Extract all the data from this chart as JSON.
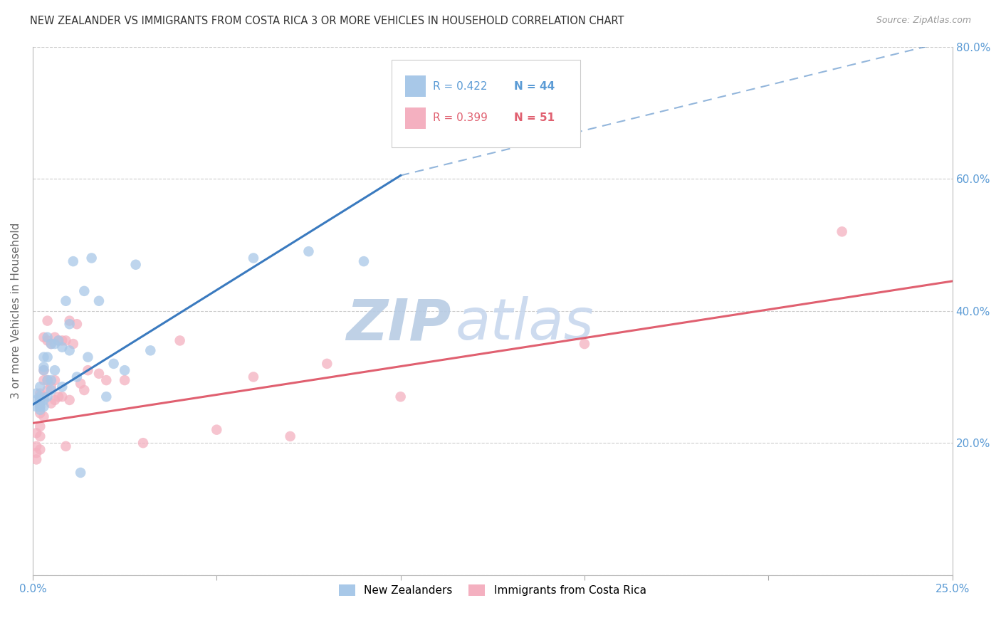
{
  "title": "NEW ZEALANDER VS IMMIGRANTS FROM COSTA RICA 3 OR MORE VEHICLES IN HOUSEHOLD CORRELATION CHART",
  "source": "Source: ZipAtlas.com",
  "ylabel": "3 or more Vehicles in Household",
  "watermark_zip": "ZIP",
  "watermark_atlas": "atlas",
  "xlim": [
    0.0,
    0.25
  ],
  "ylim": [
    0.0,
    0.8
  ],
  "xticks": [
    0.0,
    0.05,
    0.1,
    0.15,
    0.2,
    0.25
  ],
  "yticks": [
    0.0,
    0.2,
    0.4,
    0.6,
    0.8
  ],
  "xtick_labels": [
    "0.0%",
    "",
    "",
    "",
    "",
    "25.0%"
  ],
  "ytick_labels": [
    "",
    "20.0%",
    "40.0%",
    "60.0%",
    "80.0%"
  ],
  "legend_label_nz": "New Zealanders",
  "legend_label_cr": "Immigrants from Costa Rica",
  "R_nz": 0.422,
  "N_nz": 44,
  "R_cr": 0.399,
  "N_cr": 51,
  "color_nz": "#a8c8e8",
  "color_cr": "#f4b0c0",
  "trend_color_nz": "#3a7abf",
  "trend_color_cr": "#e06070",
  "axis_color": "#5b9bd5",
  "watermark_color_zip": "#b8cce4",
  "watermark_color_atlas": "#c8d8ee",
  "nz_x": [
    0.001,
    0.001,
    0.001,
    0.002,
    0.002,
    0.002,
    0.002,
    0.002,
    0.002,
    0.003,
    0.003,
    0.003,
    0.003,
    0.003,
    0.004,
    0.004,
    0.004,
    0.004,
    0.005,
    0.005,
    0.005,
    0.006,
    0.006,
    0.007,
    0.008,
    0.008,
    0.009,
    0.01,
    0.01,
    0.011,
    0.012,
    0.013,
    0.014,
    0.015,
    0.016,
    0.018,
    0.02,
    0.022,
    0.025,
    0.028,
    0.032,
    0.06,
    0.075,
    0.09
  ],
  "nz_y": [
    0.255,
    0.265,
    0.275,
    0.25,
    0.255,
    0.26,
    0.265,
    0.27,
    0.285,
    0.255,
    0.265,
    0.31,
    0.315,
    0.33,
    0.27,
    0.295,
    0.33,
    0.36,
    0.28,
    0.295,
    0.35,
    0.31,
    0.35,
    0.355,
    0.285,
    0.345,
    0.415,
    0.34,
    0.38,
    0.475,
    0.3,
    0.155,
    0.43,
    0.33,
    0.48,
    0.415,
    0.27,
    0.32,
    0.31,
    0.47,
    0.34,
    0.48,
    0.49,
    0.475
  ],
  "cr_x": [
    0.001,
    0.001,
    0.001,
    0.001,
    0.002,
    0.002,
    0.002,
    0.002,
    0.002,
    0.002,
    0.002,
    0.003,
    0.003,
    0.003,
    0.003,
    0.003,
    0.004,
    0.004,
    0.004,
    0.004,
    0.005,
    0.005,
    0.005,
    0.006,
    0.006,
    0.006,
    0.007,
    0.007,
    0.008,
    0.008,
    0.009,
    0.009,
    0.01,
    0.01,
    0.011,
    0.012,
    0.013,
    0.014,
    0.015,
    0.018,
    0.02,
    0.025,
    0.03,
    0.04,
    0.05,
    0.06,
    0.07,
    0.08,
    0.1,
    0.15,
    0.22
  ],
  "cr_y": [
    0.175,
    0.185,
    0.195,
    0.215,
    0.19,
    0.21,
    0.225,
    0.245,
    0.255,
    0.265,
    0.275,
    0.24,
    0.27,
    0.295,
    0.31,
    0.36,
    0.28,
    0.295,
    0.355,
    0.385,
    0.26,
    0.285,
    0.35,
    0.265,
    0.295,
    0.36,
    0.27,
    0.355,
    0.27,
    0.355,
    0.195,
    0.355,
    0.265,
    0.385,
    0.35,
    0.38,
    0.29,
    0.28,
    0.31,
    0.305,
    0.295,
    0.295,
    0.2,
    0.355,
    0.22,
    0.3,
    0.21,
    0.32,
    0.27,
    0.35,
    0.52
  ],
  "trend_nz_x0": 0.0,
  "trend_nz_y0": 0.258,
  "trend_nz_x1": 0.1,
  "trend_nz_y1": 0.605,
  "trend_nz_dash_x1": 0.25,
  "trend_nz_dash_y1": 0.81,
  "trend_cr_x0": 0.0,
  "trend_cr_y0": 0.23,
  "trend_cr_x1": 0.25,
  "trend_cr_y1": 0.445
}
